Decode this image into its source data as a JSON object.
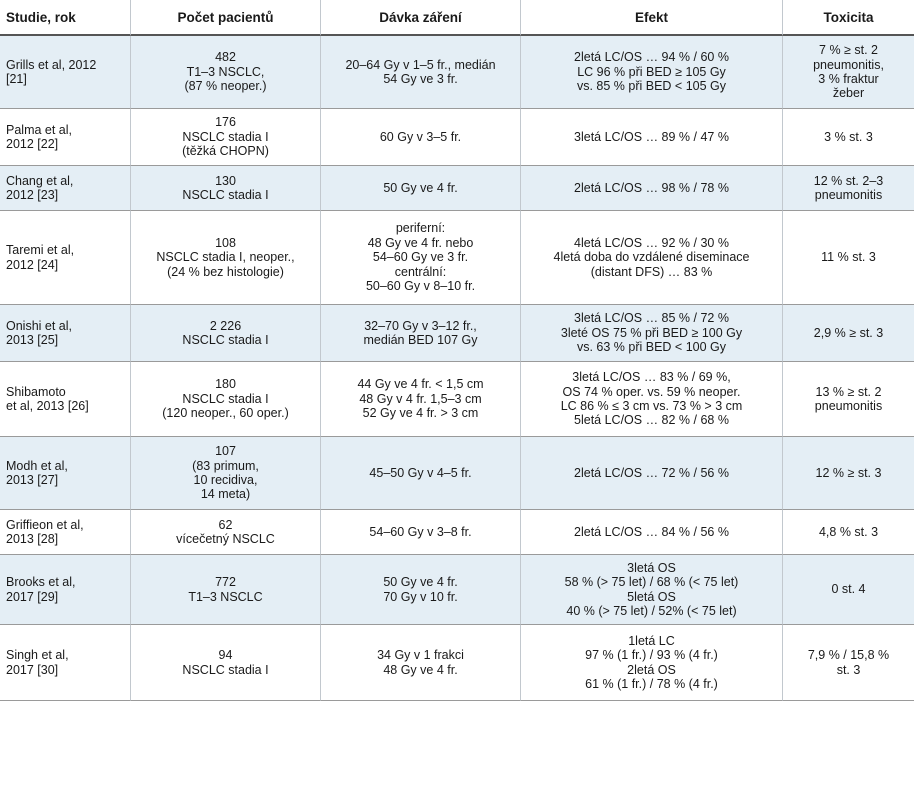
{
  "headers": [
    "Studie, rok",
    "Počet pacientů",
    "Dávka záření",
    "Efekt",
    "Toxicita"
  ],
  "rows": [
    {
      "study": [
        "Grills et al, 2012",
        "[21]"
      ],
      "patients": [
        "482",
        "T1–3 NSCLC,",
        "(87 % neoper.)"
      ],
      "dose": [
        "20–64 Gy v 1–5 fr., medián",
        "54 Gy ve 3 fr."
      ],
      "effect": [
        "2letá LC/OS … 94 % / 60 %",
        "LC 96 % při BED ≥ 105 Gy",
        "vs. 85 % při BED < 105 Gy"
      ],
      "toxicity": [
        "7 % ≥ st. 2",
        "pneumonitis,",
        "3 % fraktur",
        "žeber"
      ]
    },
    {
      "study": [
        "Palma et al,",
        "2012 [22]"
      ],
      "patients": [
        "176",
        "NSCLC stadia I",
        "(těžká CHOPN)"
      ],
      "dose": [
        "60 Gy v 3–5 fr."
      ],
      "effect": [
        "3letá LC/OS … 89 % / 47 %"
      ],
      "toxicity": [
        "3 % st. 3"
      ]
    },
    {
      "study": [
        "Chang et al,",
        "2012 [23]"
      ],
      "patients": [
        "130",
        "NSCLC stadia I"
      ],
      "dose": [
        "50 Gy ve 4 fr."
      ],
      "effect": [
        "2letá LC/OS … 98 % / 78 %"
      ],
      "toxicity": [
        "12 % st. 2–3",
        "pneumonitis"
      ]
    },
    {
      "study": [
        "Taremi et al,",
        "2012 [24]"
      ],
      "patients": [
        "108",
        "NSCLC stadia I, neoper.,",
        "(24 % bez histologie)"
      ],
      "dose": [
        "periferní:",
        "48 Gy ve 4 fr. nebo",
        "54–60 Gy ve 3 fr.",
        "centrální:",
        "50–60 Gy v 8–10 fr."
      ],
      "effect": [
        "4letá LC/OS … 92 % / 30 %",
        "4letá doba do vzdálené diseminace",
        "(distant DFS) … 83 %"
      ],
      "toxicity": [
        "11 % st. 3"
      ]
    },
    {
      "study": [
        "Onishi et al,",
        "2013 [25]"
      ],
      "patients": [
        "2 226",
        "NSCLC stadia I"
      ],
      "dose": [
        "32–70 Gy v 3–12 fr.,",
        "medián BED 107 Gy"
      ],
      "effect": [
        "3letá LC/OS … 85 % / 72 %",
        "3leté OS 75 % při BED ≥ 100 Gy",
        "vs. 63 % při BED < 100 Gy"
      ],
      "toxicity": [
        "2,9 % ≥ st. 3"
      ]
    },
    {
      "study": [
        "Shibamoto",
        "et al, 2013 [26]"
      ],
      "patients": [
        "180",
        "NSCLC stadia I",
        "(120 neoper., 60 oper.)"
      ],
      "dose": [
        "44 Gy ve 4 fr. < 1,5 cm",
        "48 Gy v 4 fr. 1,5–3 cm",
        "52 Gy ve 4 fr. > 3 cm"
      ],
      "effect": [
        "3letá LC/OS … 83 % / 69 %,",
        "OS 74 % oper. vs. 59 % neoper.",
        "LC 86 % ≤ 3 cm vs. 73 % > 3 cm",
        "5letá LC/OS … 82 % / 68 %"
      ],
      "toxicity": [
        "13 % ≥ st. 2",
        "pneumonitis"
      ]
    },
    {
      "study": [
        "Modh et al,",
        "2013 [27]"
      ],
      "patients": [
        "107",
        "(83 primum,",
        "10 recidiva,",
        "14 meta)"
      ],
      "dose": [
        "45–50 Gy v 4–5 fr."
      ],
      "effect": [
        "2letá LC/OS … 72 % / 56 %"
      ],
      "toxicity": [
        "12 % ≥ st. 3"
      ]
    },
    {
      "study": [
        "Griffieon et al,",
        "2013 [28]"
      ],
      "patients": [
        "62",
        "vícečetný NSCLC"
      ],
      "dose": [
        "54–60 Gy v 3–8 fr."
      ],
      "effect": [
        "2letá LC/OS … 84 % / 56 %"
      ],
      "toxicity": [
        "4,8 % st. 3"
      ]
    },
    {
      "study": [
        "Brooks et al,",
        "2017 [29]"
      ],
      "patients": [
        "772",
        "T1–3 NSCLC"
      ],
      "dose": [
        "50 Gy ve 4 fr.",
        "70 Gy v 10 fr."
      ],
      "effect": [
        "3letá OS",
        "58 % (> 75 let) / 68 % (< 75 let)",
        "5letá OS",
        "40 % (> 75 let) / 52% (< 75 let)"
      ],
      "toxicity": [
        "0 st. 4"
      ]
    },
    {
      "study": [
        "Singh et al,",
        "2017 [30]"
      ],
      "patients": [
        "94",
        "NSCLC stadia I"
      ],
      "dose": [
        "34 Gy v 1 frakci",
        "48 Gy ve 4 fr."
      ],
      "effect": [
        "1letá LC",
        "97 % (1 fr.) / 93 % (4 fr.)",
        "2letá OS",
        "61 % (1 fr.) / 78 % (4 fr.)"
      ],
      "toxicity": [
        "7,9 % / 15,8 %",
        "st. 3"
      ]
    }
  ]
}
